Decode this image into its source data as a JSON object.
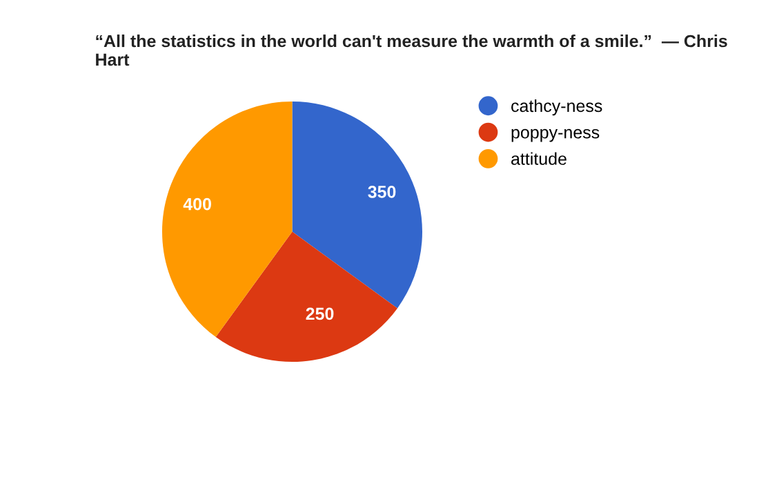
{
  "chart_data": {
    "type": "pie",
    "title": "“All the statistics in the world can't measure the warmth of a smile.”  — Chris Hart",
    "categories": [
      "cathcy-ness",
      "poppy-ness",
      "attitude"
    ],
    "values": [
      350,
      250,
      400
    ],
    "colors": [
      "#3366cc",
      "#dc3912",
      "#ff9900"
    ],
    "data_labels": true,
    "legend": "right"
  }
}
